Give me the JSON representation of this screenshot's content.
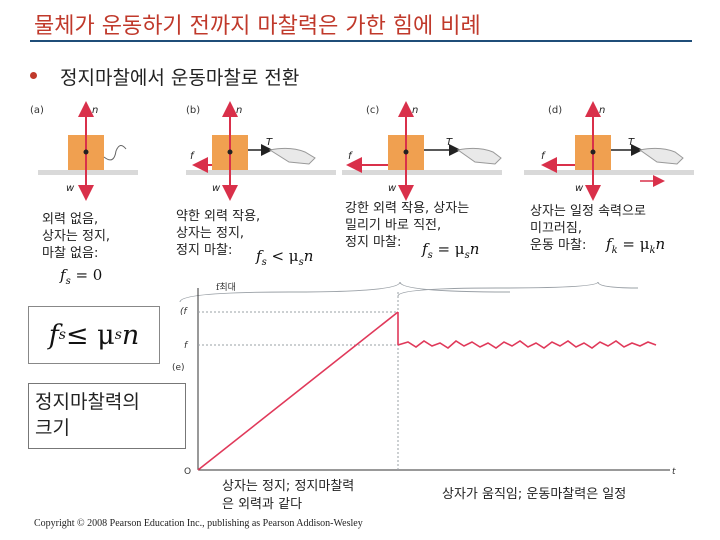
{
  "title": "물체가 운동하기 전까지 마찰력은 가한 힘에 비례",
  "bullet": "정지마찰에서 운동마찰로 전환",
  "panels": [
    {
      "label": "(a)",
      "text_lines": [
        "외력 없음,",
        "상자는 정지,",
        "마찰 없음:"
      ]
    },
    {
      "label": "(b)",
      "text_lines": [
        "약한 외력 작용,",
        "상자는 정지,",
        "정지 마찰:"
      ]
    },
    {
      "label": "(c)",
      "text_lines": [
        "강한 외력 작용, 상자는",
        "밀리기 바로 직전,",
        "정지 마찰:"
      ]
    },
    {
      "label": "(d)",
      "text_lines": [
        "상자는 일정 속력으로",
        "미끄러짐,",
        "운동 마찰:"
      ]
    }
  ],
  "force_labels": {
    "n": "n",
    "w": "w",
    "T": "T",
    "fs": "f",
    "fk": "f"
  },
  "equations": {
    "a": {
      "lhs": "f",
      "sub": "s",
      "rest": " = 0"
    },
    "b": {
      "lhs": "f",
      "sub": "s",
      "rest": " < μ",
      "sub2": "s",
      "tail": "n"
    },
    "c": {
      "lhs": "f",
      "sub": "s",
      "rest": " = μ",
      "sub2": "s",
      "tail": "n"
    },
    "d": {
      "lhs": "f",
      "sub": "k",
      "rest": " = μ",
      "sub2": "k",
      "tail": "n"
    },
    "big": {
      "lhs": "f",
      "sub": "s",
      "rest": " ≤ μ",
      "sub2": "s",
      "tail": "n"
    }
  },
  "magnitude_box": [
    "정지마찰력의",
    "크기"
  ],
  "graph": {
    "label": "(e)",
    "y_labels": {
      "top": "f최대",
      "fs_max": "(f",
      "fk": "f",
      "origin": "O",
      "t": "t"
    },
    "colors": {
      "ramp": "#e0395a",
      "kinetic": "#e0395a",
      "guide": "#9aa0a6",
      "axis": "#333333"
    }
  },
  "captions": {
    "left": [
      "상자는 정지; 정지마찰력",
      "은 외력과 같다"
    ],
    "right": "상자가 움직임; 운동마찰력은 일정"
  },
  "copyright": "Copyright © 2008 Pearson Education Inc., publishing as Pearson Addison-Wesley",
  "colors": {
    "title": "#c0392b",
    "rule": "#1f4e79",
    "box": "#f0a050",
    "arrow_red": "#d9304a",
    "arrow_dark": "#222222"
  }
}
